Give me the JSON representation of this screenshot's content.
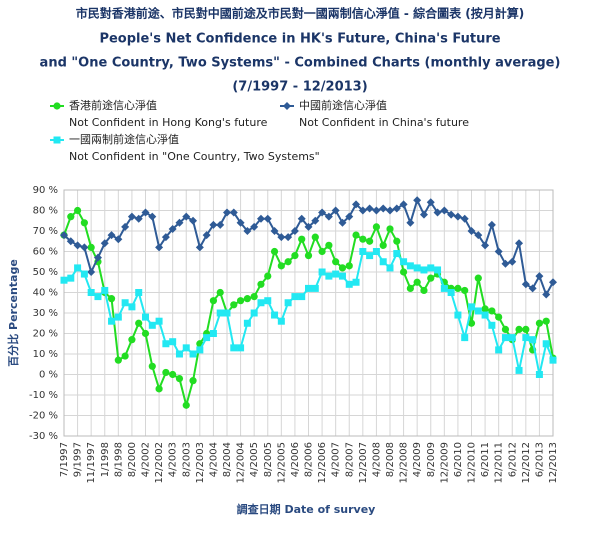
{
  "chart_data": {
    "type": "line",
    "title": [
      "市民對香港前途、市民對中國前途及市民對一國兩制信心淨值 - 綜合圖表 (按月計算)",
      "People's Net Confidence in HK's Future, China's Future",
      "and \"One Country, Two Systems\" - Combined Charts (monthly average)",
      "(7/1997 - 12/2013)"
    ],
    "xlabel": "調查日期 Date of survey",
    "ylabel": "百分比 Percentage",
    "categories": [
      "7/1997",
      null,
      "9/1997",
      null,
      "11/1997",
      null,
      "1/1998",
      null,
      "8/1998",
      null,
      "8/2000",
      null,
      "4/2002",
      null,
      "12/2002",
      null,
      "4/2003",
      null,
      "8/2003",
      null,
      "12/2003",
      null,
      "4/2004",
      null,
      "8/2004",
      null,
      "12/2004",
      null,
      "4/2005",
      null,
      "8/2005",
      null,
      "12/2005",
      null,
      "4/2006",
      null,
      "8/2006",
      null,
      "12/2006",
      null,
      "4/2007",
      null,
      "8/2007",
      null,
      "12/2007",
      null,
      "4/2008",
      null,
      "8/2008",
      null,
      "12/2008",
      null,
      "4/2009",
      null,
      "8/2009",
      null,
      "12/2009",
      null,
      "6/2010",
      null,
      "12/2010",
      null,
      "6/2011",
      null,
      "12/2011",
      null,
      "6/2012",
      null,
      "12/2012",
      null,
      "6/2013",
      null,
      "12/2013"
    ],
    "series": [
      {
        "name": "香港前途信心淨值",
        "description": "Not Confident in Hong Kong's future",
        "color": "#22dd22",
        "marker": "circle",
        "values": [
          68,
          77,
          80,
          74,
          62,
          55,
          40,
          37,
          7,
          9,
          17,
          25,
          20,
          4,
          -7,
          1,
          0,
          -2,
          -15,
          -3,
          15,
          20,
          36,
          40,
          30,
          34,
          36,
          37,
          38,
          44,
          48,
          60,
          53,
          55,
          58,
          66,
          58,
          67,
          60,
          63,
          55,
          52,
          53,
          68,
          66,
          65,
          72,
          63,
          71,
          65,
          50,
          42,
          45,
          41,
          47,
          49,
          45,
          42,
          42,
          41,
          25,
          47,
          32,
          31,
          28,
          22,
          17,
          22,
          22,
          12,
          25,
          26,
          8
        ]
      },
      {
        "name": "中國前途信心淨值",
        "description": "Not Confident in China's future",
        "color": "#2f5b96",
        "marker": "diamond",
        "values": [
          68,
          65,
          63,
          62,
          50,
          57,
          64,
          68,
          66,
          72,
          77,
          76,
          79,
          77,
          62,
          67,
          71,
          74,
          77,
          75,
          62,
          68,
          73,
          73,
          79,
          79,
          74,
          70,
          72,
          76,
          76,
          70,
          67,
          67,
          70,
          76,
          72,
          75,
          79,
          77,
          80,
          74,
          77,
          83,
          80,
          81,
          80,
          81,
          80,
          81,
          83,
          74,
          85,
          78,
          84,
          79,
          80,
          78,
          77,
          76,
          70,
          68,
          63,
          73,
          60,
          54,
          55,
          64,
          44,
          42,
          48,
          39,
          45
        ]
      },
      {
        "name": "一國兩制前途信心淨值",
        "description": "Not Confident in \"One Country, Two Systems\"",
        "color": "#22e8f2",
        "marker": "square",
        "values": [
          46,
          47,
          52,
          49,
          40,
          38,
          41,
          26,
          28,
          35,
          33,
          40,
          28,
          24,
          26,
          15,
          16,
          10,
          13,
          10,
          12,
          18,
          20,
          30,
          30,
          13,
          13,
          25,
          30,
          35,
          36,
          29,
          26,
          35,
          38,
          38,
          42,
          42,
          50,
          48,
          49,
          48,
          44,
          45,
          60,
          58,
          60,
          55,
          52,
          59,
          55,
          53,
          52,
          51,
          52,
          51,
          42,
          40,
          29,
          18,
          33,
          31,
          29,
          24,
          12,
          18,
          18,
          2,
          18,
          17,
          0,
          15,
          7
        ]
      }
    ],
    "ylim": [
      -30,
      90
    ],
    "yticks": [
      {
        "value": -30,
        "label": "-30 %"
      },
      {
        "value": -20,
        "label": "-20 %"
      },
      {
        "value": -10,
        "label": "-10 %"
      },
      {
        "value": 0,
        "label": "0 %"
      },
      {
        "value": 10,
        "label": "10 %"
      },
      {
        "value": 20,
        "label": "20 %"
      },
      {
        "value": 30,
        "label": "30 %"
      },
      {
        "value": 40,
        "label": "40 %"
      },
      {
        "value": 50,
        "label": "50 %"
      },
      {
        "value": 60,
        "label": "60 %"
      },
      {
        "value": 70,
        "label": "70 %"
      },
      {
        "value": 80,
        "label": "80 %"
      },
      {
        "value": 90,
        "label": "90 %"
      }
    ],
    "grid": true
  }
}
